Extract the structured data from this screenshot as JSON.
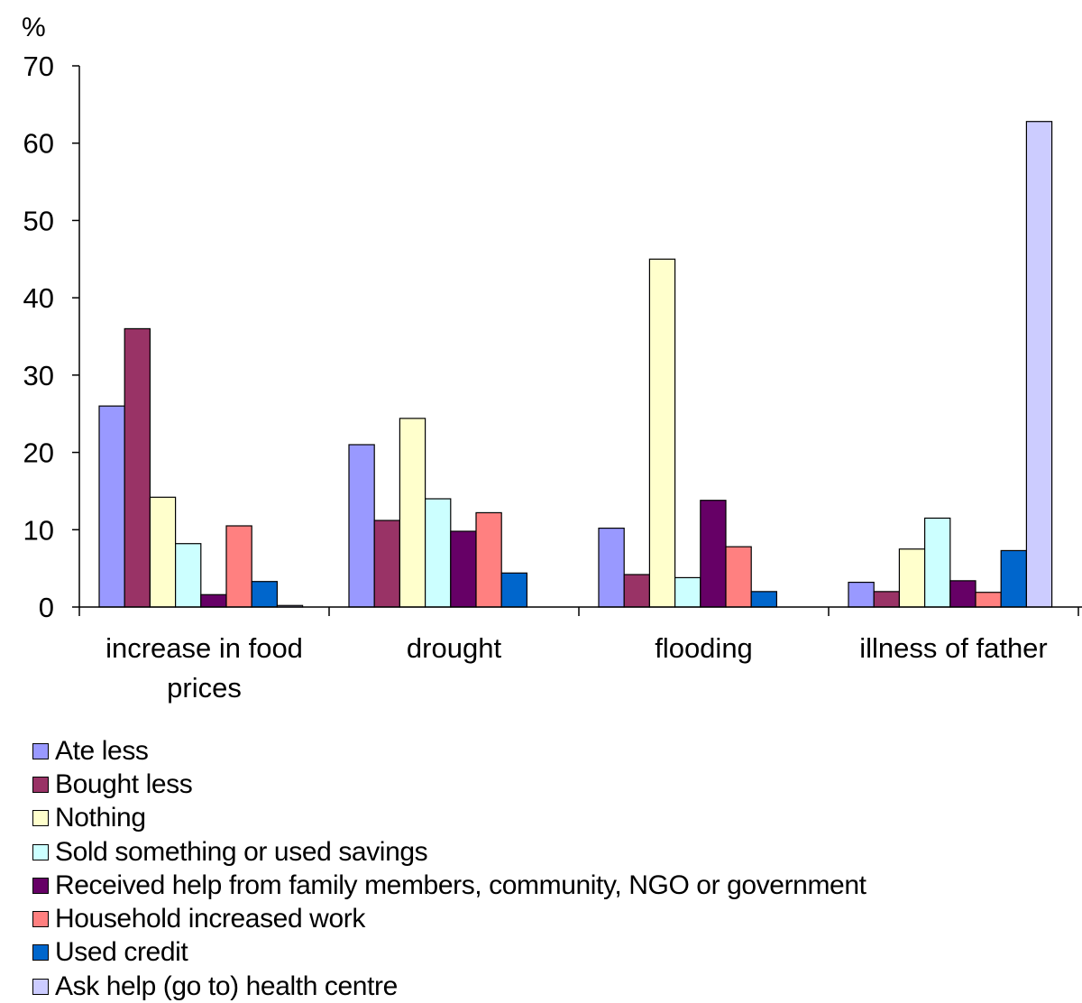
{
  "chart_data": {
    "type": "bar",
    "unit_label": "%",
    "categories": [
      [
        "increase in food",
        "prices"
      ],
      [
        "drought"
      ],
      [
        "flooding"
      ],
      [
        "illness of father"
      ]
    ],
    "ylim": [
      0,
      70
    ],
    "yticks": [
      "0",
      "10",
      "20",
      "30",
      "40",
      "50",
      "60",
      "70"
    ],
    "legend_position": "bottom-left",
    "series": [
      {
        "name": "Ate less",
        "color": "#9999ff",
        "values": [
          26,
          21,
          10.2,
          3.2
        ]
      },
      {
        "name": "Bought less",
        "color": "#993366",
        "values": [
          36,
          11.2,
          4.2,
          2
        ]
      },
      {
        "name": "Nothing",
        "color": "#ffffcc",
        "values": [
          14.2,
          24.4,
          45,
          7.5
        ]
      },
      {
        "name": "Sold something or used savings",
        "color": "#ccffff",
        "values": [
          8.2,
          14,
          3.8,
          11.5
        ]
      },
      {
        "name": "Received help from family members, community, NGO or government",
        "color": "#660066",
        "values": [
          1.6,
          9.8,
          13.8,
          3.4
        ]
      },
      {
        "name": "Household increased work",
        "color": "#ff8080",
        "values": [
          10.5,
          12.2,
          7.8,
          1.9
        ]
      },
      {
        "name": "Used credit",
        "color": "#0066cc",
        "values": [
          3.3,
          4.4,
          2,
          7.3
        ]
      },
      {
        "name": "Ask help (go to) health centre",
        "color": "#ccccff",
        "values": [
          0.2,
          null,
          null,
          62.8
        ]
      }
    ]
  }
}
